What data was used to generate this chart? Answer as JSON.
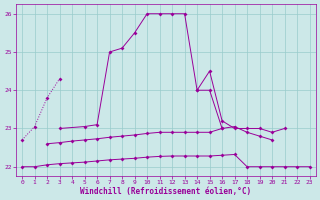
{
  "xlabel": "Windchill (Refroidissement éolien,°C)",
  "background_color": "#cce8e8",
  "line_color": "#990099",
  "grid_color": "#99cccc",
  "ylim": [
    21.75,
    26.25
  ],
  "yticks": [
    22,
    23,
    24,
    25,
    26
  ],
  "xlim": [
    -0.5,
    23.5
  ],
  "xticks": [
    0,
    1,
    2,
    3,
    4,
    5,
    6,
    7,
    8,
    9,
    10,
    11,
    12,
    13,
    14,
    15,
    16,
    17,
    18,
    19,
    20,
    21,
    22,
    23
  ],
  "line1_x": [
    0,
    1,
    2,
    3
  ],
  "line1_y": [
    22.7,
    23.05,
    23.8,
    24.3
  ],
  "line2_x": [
    3,
    5,
    6,
    7,
    8,
    9,
    10,
    11,
    12,
    13,
    14,
    15,
    16
  ],
  "line2_y": [
    23.0,
    23.05,
    23.1,
    25.0,
    25.1,
    25.5,
    26.0,
    26.0,
    26.0,
    26.0,
    24.0,
    24.0,
    23.0
  ],
  "line3_x": [
    14,
    15,
    16,
    17,
    18,
    19,
    20,
    21
  ],
  "line3_y": [
    24.0,
    24.5,
    23.2,
    23.0,
    23.0,
    23.0,
    22.9,
    23.0
  ],
  "line4_x": [
    0,
    1,
    2,
    3,
    4,
    5,
    6,
    7,
    8,
    9,
    10,
    11,
    12,
    13,
    14,
    15,
    16,
    17,
    18,
    19,
    20,
    21,
    22,
    23
  ],
  "line4_y": [
    22.0,
    22.0,
    22.05,
    22.08,
    22.1,
    22.12,
    22.15,
    22.18,
    22.2,
    22.22,
    22.25,
    22.27,
    22.28,
    22.28,
    22.28,
    22.28,
    22.3,
    22.32,
    22.0,
    22.0,
    22.0,
    22.0,
    22.0,
    22.0
  ],
  "line5_x": [
    2,
    3,
    4,
    5,
    6,
    7,
    8,
    9,
    10,
    11,
    12,
    13,
    14,
    15,
    16,
    17,
    18,
    19,
    20
  ],
  "line5_y": [
    22.6,
    22.63,
    22.67,
    22.7,
    22.73,
    22.77,
    22.8,
    22.83,
    22.87,
    22.9,
    22.9,
    22.9,
    22.9,
    22.9,
    23.0,
    23.05,
    22.9,
    22.8,
    22.7
  ]
}
